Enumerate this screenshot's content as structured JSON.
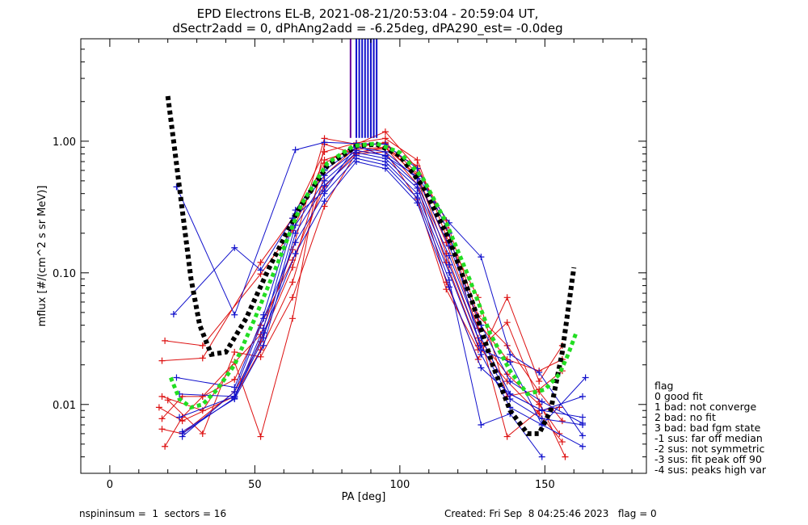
{
  "chart_data": {
    "type": "line",
    "title": "EPD Electrons EL-B, 2021-08-21/20:53:04 - 20:59:04 UT,",
    "subtitle": "dSectr2add = 0, dPhAng2add = -6.25deg, dPA290_est=  -0.0deg",
    "xlabel": "PA [deg]",
    "ylabel": "mflux [#/(cm^2 s sr MeV)]",
    "xlim": [
      -10,
      185
    ],
    "ylim": [
      0.003,
      6.0
    ],
    "yscale": "log",
    "x_ticks": [
      "0",
      "50",
      "100",
      "150"
    ],
    "y_ticks": [
      "0.01",
      "0.10",
      "1.00"
    ],
    "x_tick_values": [
      0,
      50,
      100,
      150
    ],
    "y_tick_values": [
      0.01,
      0.1,
      1.0
    ],
    "grid": false,
    "colors": {
      "red": "#dd1111",
      "blue": "#1111cc",
      "black": "#000000",
      "green": "#22dd22",
      "purple": "#660099"
    },
    "series": [
      {
        "color": "red",
        "x": [
          17,
          25,
          43,
          52,
          63,
          74,
          85,
          95,
          106,
          116,
          127,
          137,
          148,
          155
        ],
        "y": [
          0.0095,
          0.0075,
          0.0115,
          0.026,
          0.085,
          0.55,
          0.9,
          0.98,
          0.57,
          0.14,
          0.032,
          0.017,
          0.01,
          0.006
        ]
      },
      {
        "color": "red",
        "x": [
          18,
          25,
          43,
          52,
          63,
          74,
          85,
          95,
          106,
          116,
          127,
          137,
          148,
          156
        ],
        "y": [
          0.0065,
          0.006,
          0.0125,
          0.03,
          0.11,
          0.68,
          0.93,
          0.96,
          0.52,
          0.12,
          0.028,
          0.015,
          0.0085,
          0.0052
        ]
      },
      {
        "color": "red",
        "x": [
          19,
          25,
          32,
          52,
          63,
          74,
          85,
          95,
          106,
          116,
          127,
          137,
          148,
          156
        ],
        "y": [
          0.0048,
          0.008,
          0.0115,
          0.034,
          0.15,
          1.05,
          0.95,
          1.18,
          0.62,
          0.25,
          0.047,
          0.028,
          0.0125,
          0.0075
        ]
      },
      {
        "color": "red",
        "x": [
          18,
          32,
          52,
          63,
          74,
          85,
          95,
          106,
          116,
          127,
          137,
          148,
          156
        ],
        "y": [
          0.0215,
          0.0225,
          0.12,
          0.26,
          0.83,
          0.97,
          1.05,
          0.72,
          0.19,
          0.065,
          0.0115,
          0.013,
          0.018
        ]
      },
      {
        "color": "red",
        "x": [
          19,
          32,
          52,
          63,
          74,
          85,
          95,
          106,
          116,
          127,
          137,
          148,
          155
        ],
        "y": [
          0.0305,
          0.028,
          0.098,
          0.21,
          0.72,
          0.87,
          0.9,
          0.55,
          0.17,
          0.038,
          0.0057,
          0.009,
          0.0095
        ]
      },
      {
        "color": "red",
        "x": [
          20,
          32,
          43,
          52,
          63,
          74,
          85,
          95,
          106,
          116,
          127,
          137,
          148,
          156
        ],
        "y": [
          0.0108,
          0.006,
          0.025,
          0.023,
          0.065,
          0.32,
          0.82,
          0.9,
          0.47,
          0.085,
          0.022,
          0.065,
          0.015,
          0.028
        ]
      },
      {
        "color": "red",
        "x": [
          18,
          32,
          43,
          52,
          63,
          74,
          85,
          95,
          106,
          116,
          127,
          137,
          148,
          157
        ],
        "y": [
          0.0115,
          0.009,
          0.021,
          0.0057,
          0.045,
          0.95,
          0.8,
          0.83,
          0.36,
          0.075,
          0.026,
          0.042,
          0.0105,
          0.004
        ]
      },
      {
        "color": "red",
        "x": [
          18,
          25,
          32,
          43,
          52,
          63,
          74,
          85,
          95,
          106,
          116,
          127,
          137,
          148,
          156
        ],
        "y": [
          0.0078,
          0.0115,
          0.0115,
          0.0155,
          0.04,
          0.125,
          0.45,
          0.82,
          0.88,
          0.65,
          0.22,
          0.042,
          0.022,
          0.018,
          0.022
        ]
      },
      {
        "color": "blue",
        "x": [
          22,
          43,
          52,
          63,
          74,
          85,
          95,
          106,
          117,
          128,
          138,
          148,
          163
        ],
        "y": [
          0.0485,
          0.155,
          0.105,
          0.26,
          0.42,
          0.92,
          0.77,
          0.54,
          0.24,
          0.132,
          0.024,
          0.0175,
          0.0058
        ]
      },
      {
        "color": "blue",
        "x": [
          23,
          43,
          64,
          74,
          85,
          95,
          106,
          117,
          128,
          138,
          149,
          163
        ],
        "y": [
          0.45,
          0.048,
          0.86,
          0.98,
          0.96,
          0.95,
          0.62,
          0.2,
          0.026,
          0.021,
          0.007,
          0.0048
        ]
      },
      {
        "color": "blue",
        "x": [
          23,
          43,
          53,
          64,
          74,
          85,
          95,
          106,
          117,
          128,
          138,
          149,
          163
        ],
        "y": [
          0.016,
          0.0135,
          0.048,
          0.3,
          0.6,
          0.9,
          0.83,
          0.52,
          0.16,
          0.04,
          0.015,
          0.0105,
          0.0072
        ]
      },
      {
        "color": "blue",
        "x": [
          24,
          43,
          53,
          64,
          74,
          85,
          95,
          106,
          117,
          128,
          138,
          149,
          163
        ],
        "y": [
          0.012,
          0.0115,
          0.038,
          0.28,
          0.55,
          0.85,
          0.78,
          0.47,
          0.135,
          0.032,
          0.012,
          0.009,
          0.008
        ]
      },
      {
        "color": "blue",
        "x": [
          24,
          43,
          53,
          64,
          74,
          85,
          95,
          106,
          117,
          128,
          138,
          149,
          163
        ],
        "y": [
          0.008,
          0.0115,
          0.032,
          0.23,
          0.5,
          0.82,
          0.74,
          0.44,
          0.115,
          0.028,
          0.011,
          0.0078,
          0.007
        ]
      },
      {
        "color": "blue",
        "x": [
          25,
          43,
          53,
          64,
          74,
          85,
          95,
          106,
          117,
          128,
          138,
          149,
          164
        ],
        "y": [
          0.0062,
          0.011,
          0.028,
          0.2,
          0.46,
          0.78,
          0.7,
          0.4,
          0.1,
          0.024,
          0.0095,
          0.007,
          0.016
        ]
      },
      {
        "color": "blue",
        "x": [
          25,
          43,
          53,
          64,
          74,
          85,
          95,
          106,
          117,
          128,
          138,
          149
        ],
        "y": [
          0.0057,
          0.0125,
          0.045,
          0.17,
          0.4,
          0.74,
          0.66,
          0.37,
          0.088,
          0.007,
          0.0085,
          0.004
        ]
      },
      {
        "color": "blue",
        "x": [
          25,
          43,
          53,
          64,
          74,
          85,
          95,
          106,
          117,
          128,
          138,
          149,
          163
        ],
        "y": [
          0.006,
          0.0112,
          0.035,
          0.14,
          0.35,
          0.7,
          0.62,
          0.34,
          0.078,
          0.019,
          0.012,
          0.009,
          0.0115
        ]
      },
      {
        "color": "black",
        "style": "dotted",
        "x": [
          20,
          22,
          25,
          28,
          31,
          35,
          40,
          47,
          55,
          65,
          75,
          85,
          92,
          100,
          108,
          117,
          125,
          132,
          138,
          144,
          148,
          152,
          156,
          160
        ],
        "y": [
          2.2,
          1.0,
          0.3,
          0.09,
          0.04,
          0.024,
          0.025,
          0.045,
          0.11,
          0.3,
          0.65,
          0.92,
          0.95,
          0.78,
          0.45,
          0.18,
          0.06,
          0.02,
          0.009,
          0.006,
          0.006,
          0.009,
          0.025,
          0.11
        ]
      },
      {
        "color": "green",
        "style": "dotted",
        "x": [
          21,
          24,
          28,
          32,
          37,
          43,
          50,
          58,
          66,
          75,
          84,
          92,
          100,
          108,
          116,
          124,
          131,
          138,
          144,
          150,
          155,
          158,
          161
        ],
        "y": [
          0.016,
          0.011,
          0.0095,
          0.01,
          0.013,
          0.02,
          0.045,
          0.12,
          0.33,
          0.68,
          0.92,
          0.96,
          0.82,
          0.52,
          0.24,
          0.09,
          0.035,
          0.018,
          0.012,
          0.013,
          0.017,
          0.024,
          0.036
        ]
      }
    ],
    "vertical_lines": [
      {
        "color": "purple",
        "x": [
          83,
          91
        ]
      },
      {
        "color": "blue",
        "x": [
          85,
          86,
          87,
          88,
          89,
          90,
          91,
          92
        ]
      }
    ],
    "footer_left": "nspininsum =  1  sectors = 16",
    "footer_right": "Created: Fri Sep  8 04:25:46 2023   flag = 0",
    "legend_title": "flag",
    "legend_placement": "right",
    "legend_items": [
      " 0 good fit",
      " 1 bad: not converge",
      " 2 bad: no fit",
      " 3 bad: bad fgm state",
      "-1 sus: far off median",
      "-2 sus: not symmetric",
      "-3 sus: fit peak off 90",
      "-4 sus: peaks high var"
    ]
  }
}
